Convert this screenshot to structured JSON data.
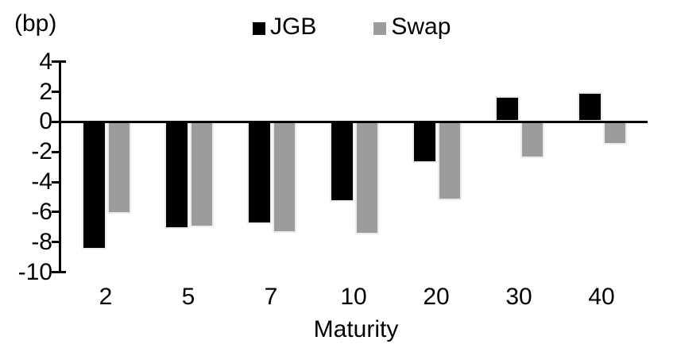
{
  "chart_data": {
    "type": "bar",
    "title": "",
    "unit_label": "(bp)",
    "xlabel": "Maturity",
    "ylabel": "",
    "categories": [
      "2",
      "5",
      "7",
      "10",
      "20",
      "30",
      "40"
    ],
    "series": [
      {
        "name": "JGB",
        "color": "#000000",
        "values": [
          -8.5,
          -7.1,
          -6.8,
          -5.3,
          -2.7,
          1.7,
          2.0
        ]
      },
      {
        "name": "Swap",
        "color": "#9c9c9c",
        "values": [
          -6.1,
          -7.0,
          -7.4,
          -7.5,
          -5.2,
          -2.4,
          -1.5
        ]
      }
    ],
    "y_ticks": [
      4,
      2,
      0,
      -2,
      -4,
      -6,
      -8,
      -10
    ],
    "ylim": [
      -10,
      4
    ],
    "grid": false,
    "legend_position": "top-center",
    "zero_baseline": true
  },
  "colors": {
    "jgb": "#000000",
    "swap": "#9c9c9c",
    "axis": "#000000",
    "background": "#ffffff"
  }
}
